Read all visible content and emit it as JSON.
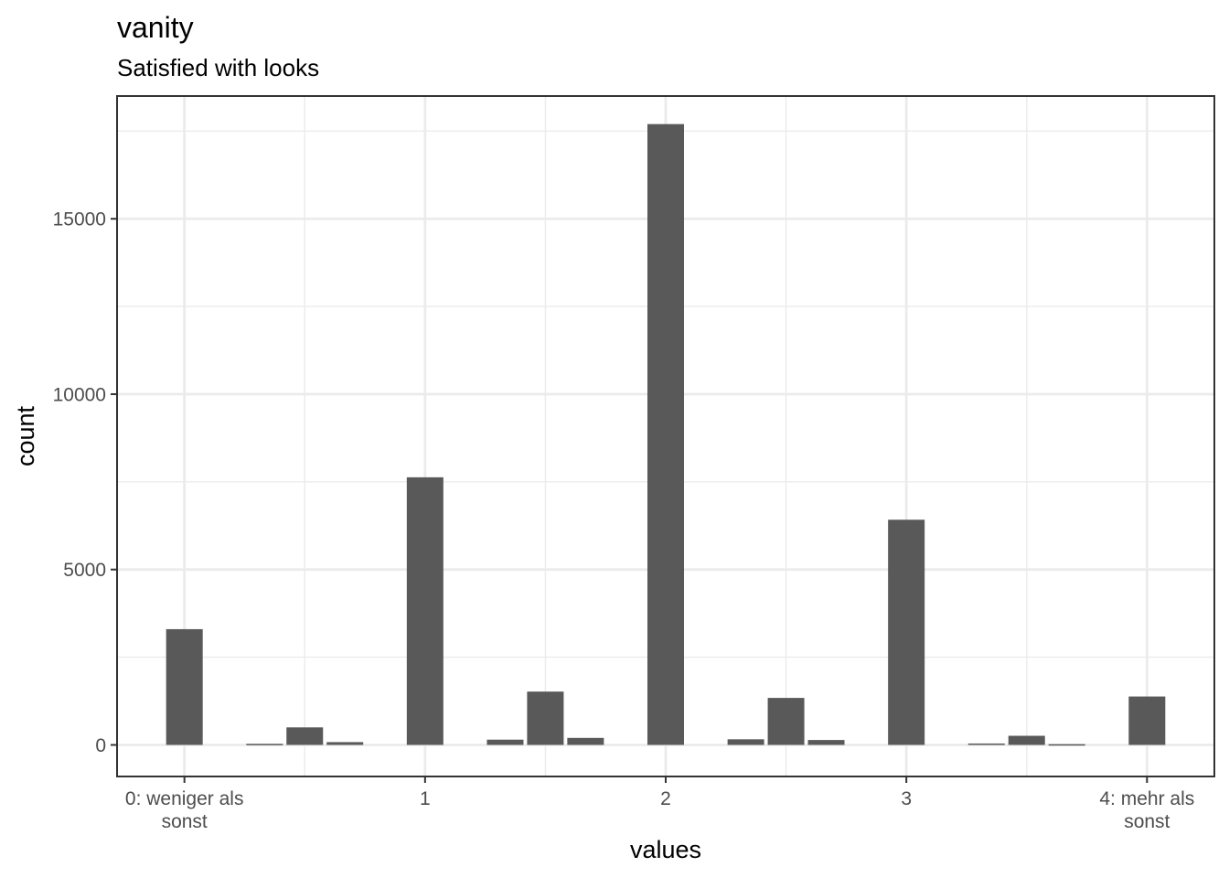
{
  "chart_data": {
    "type": "bar",
    "title": "vanity",
    "subtitle": "Satisfied with looks",
    "xlabel": "values",
    "ylabel": "count",
    "x": [
      0,
      0.333,
      0.5,
      0.667,
      1,
      1.333,
      1.5,
      1.667,
      2,
      2.333,
      2.5,
      2.667,
      3,
      3.333,
      3.5,
      3.667,
      4
    ],
    "values": [
      3300,
      30,
      500,
      80,
      7630,
      150,
      1520,
      200,
      17700,
      160,
      1340,
      140,
      6420,
      40,
      260,
      20,
      1380
    ],
    "xlim": [
      -0.28,
      4.28
    ],
    "ylim": [
      -900,
      18500
    ],
    "x_ticks": [
      {
        "value": 0,
        "label": [
          "0: weniger als",
          "sonst"
        ]
      },
      {
        "value": 1,
        "label": [
          "1"
        ]
      },
      {
        "value": 2,
        "label": [
          "2"
        ]
      },
      {
        "value": 3,
        "label": [
          "3"
        ]
      },
      {
        "value": 4,
        "label": [
          "4: mehr als",
          "sonst"
        ]
      }
    ],
    "y_ticks": [
      0,
      5000,
      10000,
      15000
    ],
    "bar_color": "#595959",
    "grid": true,
    "theme": "bw"
  }
}
